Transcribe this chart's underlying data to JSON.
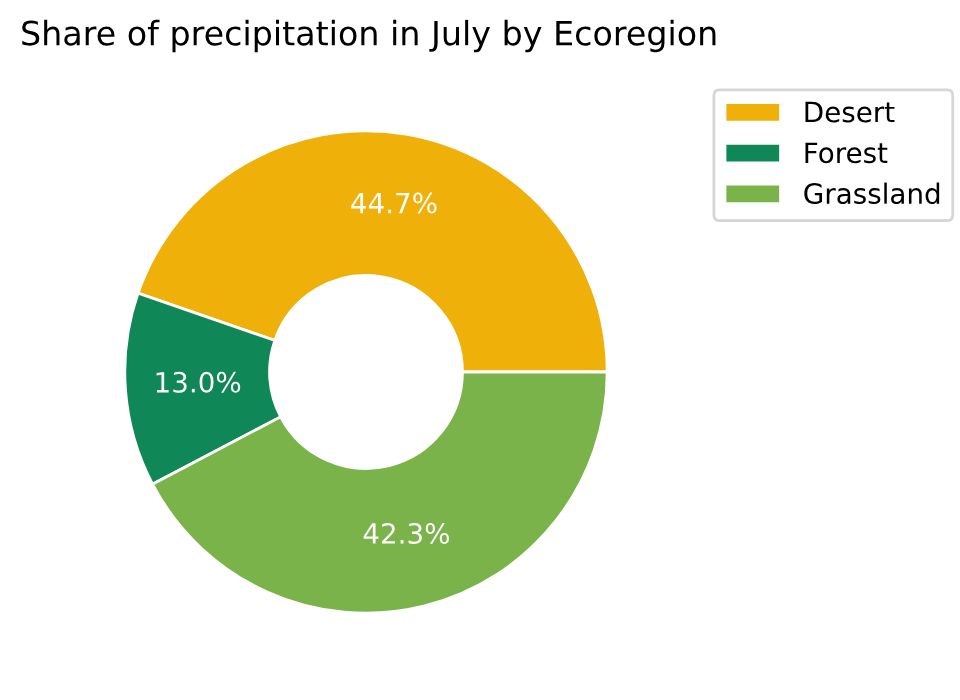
{
  "chart_data": {
    "type": "donut",
    "title": "Share of precipitation in July by Ecoregion",
    "categories": [
      "Desert",
      "Forest",
      "Grassland"
    ],
    "values": [
      44.7,
      13.0,
      42.3
    ],
    "colors": [
      "#f0b00a",
      "#108757",
      "#7ab34a"
    ],
    "value_labels": [
      "44.7%",
      "13.0%",
      "42.3%"
    ],
    "legend": "top right"
  }
}
